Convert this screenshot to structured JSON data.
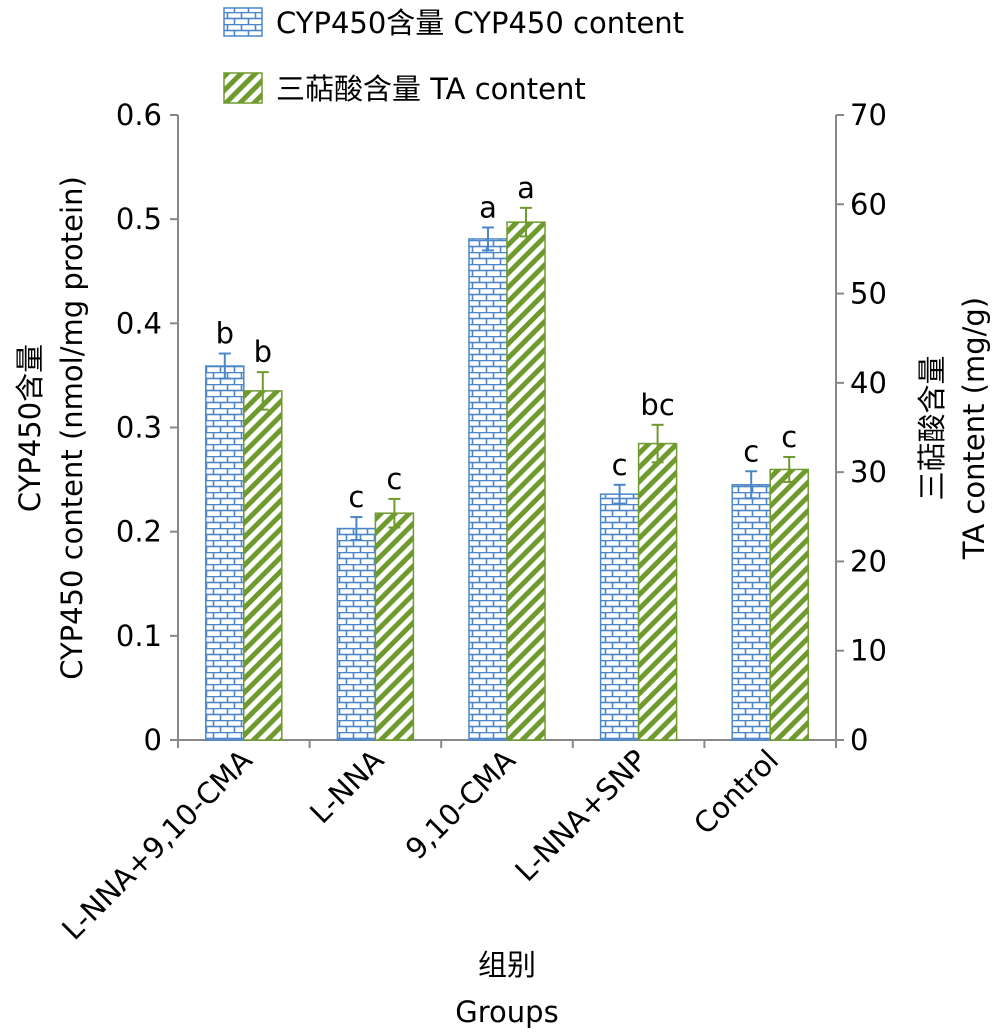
{
  "chart_data": {
    "type": "bar",
    "legend_position": "top",
    "categories": [
      "L-NNA+9,10-CMA",
      "L-NNA",
      "9,10-CMA",
      "L-NNA+SNP",
      "Control"
    ],
    "series": [
      {
        "name": "CYP450含量 CYP450 content",
        "axis": "left",
        "color": "#4a86c8",
        "pattern": "brick",
        "values": [
          0.359,
          0.203,
          0.481,
          0.236,
          0.245
        ],
        "errors": [
          0.012,
          0.011,
          0.011,
          0.009,
          0.013
        ],
        "letters": [
          "b",
          "c",
          "a",
          "c",
          "c"
        ]
      },
      {
        "name": "三萜酸含量 TA content",
        "axis": "right",
        "color": "#6f9a2e",
        "pattern": "diagonal",
        "values": [
          39.1,
          25.4,
          58.0,
          33.2,
          30.3
        ],
        "errors": [
          2.1,
          1.6,
          1.6,
          2.1,
          1.4
        ],
        "letters": [
          "b",
          "c",
          "a",
          "bc",
          "c"
        ]
      }
    ],
    "left_axis": {
      "label_cn": "CYP450含量",
      "label_en": "CYP450 content (nmol/mg protein)",
      "range": [
        0,
        0.6
      ],
      "ticks": [
        "0",
        "0.1",
        "0.2",
        "0.3",
        "0.4",
        "0.5",
        "0.6"
      ]
    },
    "right_axis": {
      "label_cn": "三萜酸含量",
      "label_en": "TA content (mg/g)",
      "range": [
        0,
        70
      ],
      "ticks": [
        "0",
        "10",
        "20",
        "30",
        "40",
        "50",
        "60",
        "70"
      ]
    },
    "xlabel_cn": "组别",
    "xlabel_en": "Groups",
    "grid": false
  }
}
